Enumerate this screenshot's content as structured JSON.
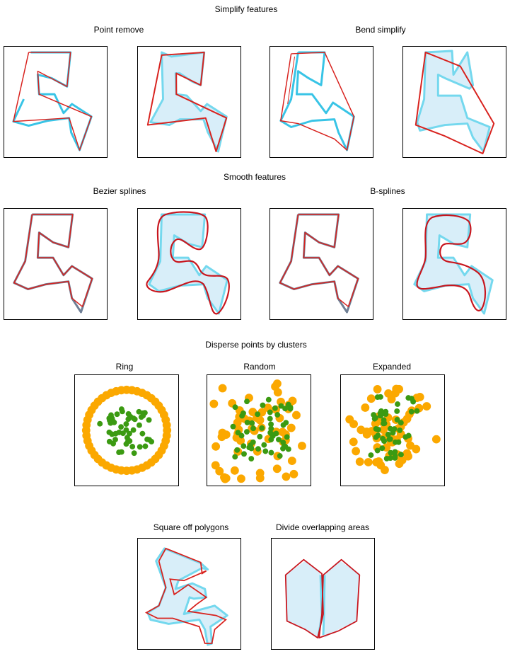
{
  "sections": {
    "simplify": {
      "title": "Simplify features",
      "point_remove": "Point remove",
      "bend_simplify": "Bend simplify"
    },
    "smooth": {
      "title": "Smooth features",
      "bezier": "Bezier splines",
      "bsplines": "B-splines"
    },
    "disperse": {
      "title": "Disperse points by clusters",
      "ring": "Ring",
      "random": "Random",
      "expanded": "Expanded"
    },
    "square_off": "Square off polygons",
    "divide_overlap": "Divide overlapping areas"
  },
  "colors": {
    "original": "#38c4e6",
    "original_fill": "#d8eef9",
    "result": "#d8221e",
    "point_green": "#3b9a12",
    "point_orange": "#fba800",
    "frame": "#000000"
  }
}
